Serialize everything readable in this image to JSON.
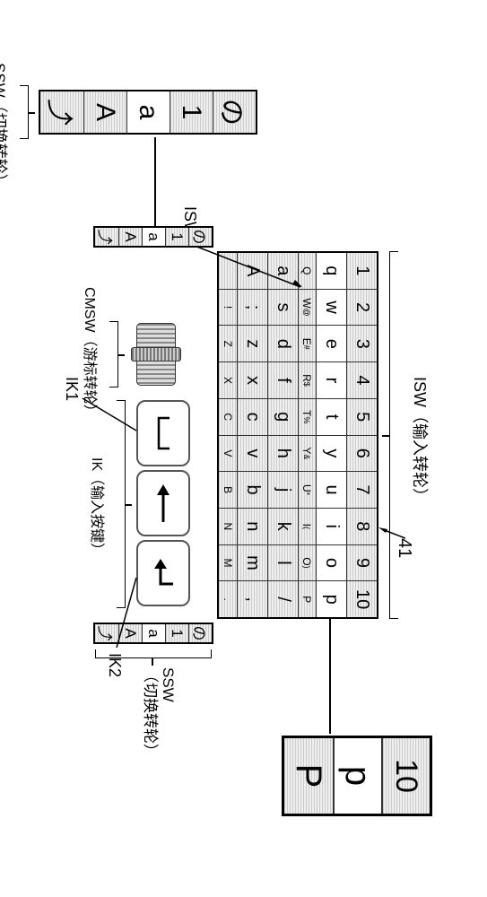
{
  "ref_number": "41",
  "isw": {
    "label_top": "ISW（输入转轮）",
    "rows": [
      [
        "1",
        "2",
        "3",
        "4",
        "5",
        "6",
        "7",
        "8",
        "9",
        "10"
      ],
      [
        "q",
        "w",
        "e",
        "r",
        "t",
        "y",
        "u",
        "i",
        "o",
        "p"
      ],
      [
        "Q",
        "W",
        "E",
        "R",
        "$",
        "T",
        "%",
        "Y",
        "&",
        "U",
        "*",
        "I",
        "(",
        "O",
        ")",
        "P"
      ],
      [
        "a",
        "s",
        "d",
        "f",
        "g",
        "h",
        "j",
        "k",
        "l",
        "/"
      ],
      [
        "A",
        ";",
        "z",
        "x",
        "c",
        "v",
        "b",
        "n",
        "m",
        ","
      ],
      [
        "",
        "!",
        "Z",
        "X",
        "C",
        "V",
        "B",
        "N",
        "M",
        "."
      ]
    ],
    "selected_row": 1
  },
  "isw_row3": [
    "Q",
    "W",
    "E",
    "R",
    "T",
    "Y",
    "U",
    "I",
    "O",
    "P"
  ],
  "isw_row3_sub": [
    "@",
    "#",
    "$",
    "%",
    "&",
    "*",
    "(",
    ")"
  ],
  "isw1_label": "ISW1",
  "ssw": {
    "label": "SSW（切换转轮）",
    "cells": [
      "の",
      "1",
      "a",
      "A",
      "⤴"
    ],
    "selected": 2
  },
  "ssw_big": {
    "cells": [
      "の",
      "1",
      "a",
      "A",
      "⤴"
    ],
    "selected": 2
  },
  "cmsw_label": "CMSW（游标转轮）",
  "ik_label": "IK（输入按键）",
  "ik1_label": "IK1",
  "ik2_label": "IK2",
  "buttons": {
    "space": "␣",
    "back": "⟸",
    "enter": "↵"
  },
  "detail": {
    "cells": [
      "10",
      "p",
      "P"
    ],
    "selected": 1
  },
  "colors": {
    "stroke": "#000000",
    "bg": "#ffffff"
  }
}
